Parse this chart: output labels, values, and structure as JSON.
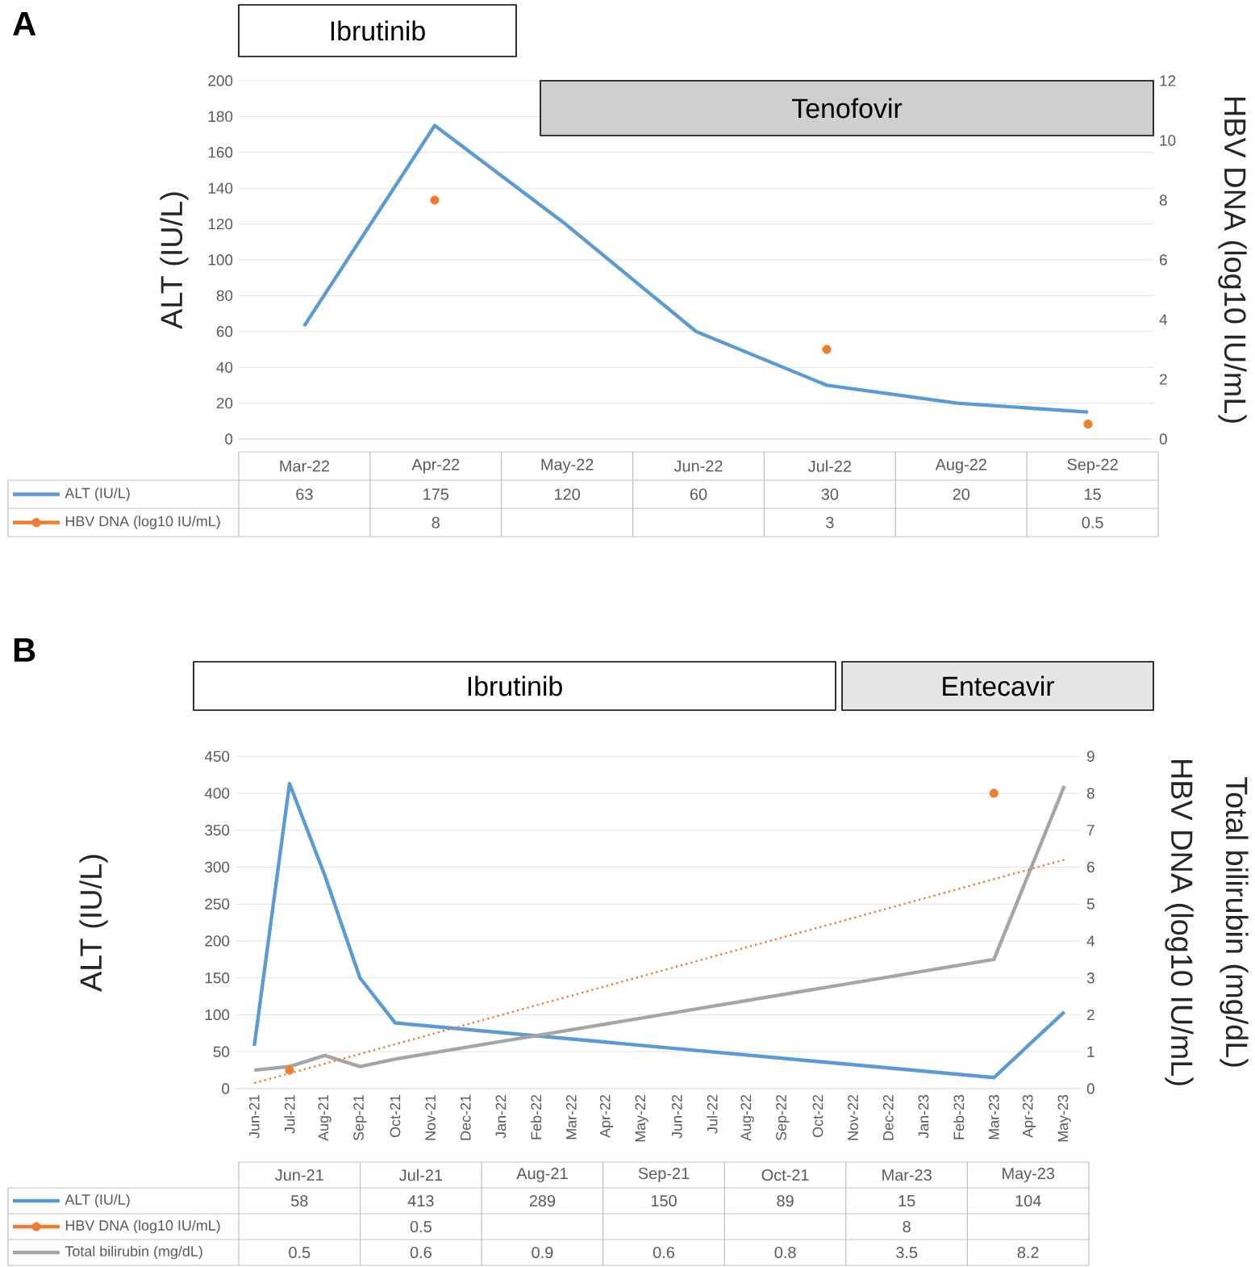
{
  "chart_data": [
    {
      "type": "line",
      "title": "A",
      "categories": [
        "Mar-22",
        "Apr-22",
        "May-22",
        "Jun-22",
        "Jul-22",
        "Aug-22",
        "Sep-22"
      ],
      "ylabel": "ALT (IU/L)",
      "y2label": "HBV DNA (log10 IU/mL)",
      "ylim": [
        0,
        200
      ],
      "yticks": [
        0,
        20,
        40,
        60,
        80,
        100,
        120,
        140,
        160,
        180,
        200
      ],
      "y2lim": [
        0,
        12
      ],
      "y2ticks": [
        0,
        2,
        4,
        6,
        8,
        10,
        12
      ],
      "grid": "y",
      "legend": "bottom",
      "data_labels": true,
      "annotations": [
        "Ibrutinib",
        "Tenofovir"
      ],
      "series": [
        {
          "name": "ALT (IU/L)",
          "color": "#5b9bd5",
          "marker": "none",
          "line_style": "solid",
          "values": [
            63,
            175,
            120,
            60,
            30,
            20,
            15
          ]
        },
        {
          "name": "HBV DNA (log10 IU/mL)",
          "type": "scatter",
          "axis": "y2",
          "color": "#ed7d31",
          "marker": "circle",
          "values": [
            null,
            8,
            null,
            null,
            3,
            null,
            0.5
          ]
        }
      ]
    },
    {
      "type": "line",
      "title": "B",
      "x": [
        "2021-06",
        "2021-07",
        "2021-08",
        "2021-09",
        "2021-10",
        "2023-03",
        "2023-05"
      ],
      "xlim": [
        "2021-05-15",
        "2023-05-15"
      ],
      "xticks": [
        {
          "value": "2021-06",
          "label": "Jun-21"
        },
        {
          "value": "2021-07",
          "label": "Jul-21"
        },
        {
          "value": "2021-08",
          "label": "Aug-21"
        },
        {
          "value": "2021-09",
          "label": "Sep-21"
        },
        {
          "value": "2021-10",
          "label": "Oct-21"
        },
        {
          "value": "2021-11",
          "label": "Nov-21"
        },
        {
          "value": "2021-12",
          "label": "Dec-21"
        },
        {
          "value": "2022-01",
          "label": "Jan-22"
        },
        {
          "value": "2022-02",
          "label": "Feb-22"
        },
        {
          "value": "2022-03",
          "label": "Mar-22"
        },
        {
          "value": "2022-04",
          "label": "Apr-22"
        },
        {
          "value": "2022-05",
          "label": "May-22"
        },
        {
          "value": "2022-06",
          "label": "Jun-22"
        },
        {
          "value": "2022-07",
          "label": "Jul-22"
        },
        {
          "value": "2022-08",
          "label": "Aug-22"
        },
        {
          "value": "2022-09",
          "label": "Sep-22"
        },
        {
          "value": "2022-10",
          "label": "Oct-22"
        },
        {
          "value": "2022-11",
          "label": "Nov-22"
        },
        {
          "value": "2022-12",
          "label": "Dec-22"
        },
        {
          "value": "2023-01",
          "label": "Jan-23"
        },
        {
          "value": "2023-02",
          "label": "Feb-23"
        },
        {
          "value": "2023-03",
          "label": "Mar-23"
        },
        {
          "value": "2023-04",
          "label": "Apr-23"
        },
        {
          "value": "2023-05",
          "label": "May-23"
        }
      ],
      "ylabel": "ALT (IU/L)",
      "y2label": "Total bilirubin (mg/dL)",
      "ylim": [
        0,
        450
      ],
      "yticks": [
        0,
        50,
        100,
        150,
        200,
        250,
        300,
        350,
        400,
        450
      ],
      "y2lim": [
        0,
        9
      ],
      "y2ticks": [
        0,
        1,
        2,
        3,
        4,
        5,
        6,
        7,
        8,
        9
      ],
      "grid": "y",
      "annotations": [
        "Ibrutinib",
        "Entecavir",
        "HBV DNA (log10 IU/mL)"
      ],
      "series": [
        {
          "color": "#5b9bd5",
          "marker": "none",
          "line_style": "solid",
          "values": [
            58,
            413,
            289,
            150,
            89,
            15,
            104
          ]
        },
        {
          "type": "scatter",
          "axis": "y2",
          "color": "#ed7d31",
          "marker": "circle",
          "values": [
            null,
            0.5,
            null,
            null,
            null,
            8,
            null
          ]
        },
        {
          "axis": "y2",
          "color": "#a5a5a5",
          "marker": "none",
          "line_style": "solid",
          "values": [
            0.5,
            0.6,
            0.9,
            0.6,
            0.8,
            3.5,
            8.2
          ]
        },
        {
          "type": "line",
          "axis": "y2",
          "color": "#ed7d31",
          "marker": "none",
          "line_style": "dotted",
          "x": [
            "2021-06",
            "2023-05"
          ],
          "values": [
            0.15,
            6.2
          ]
        }
      ]
    },
    {
      "type": "other",
      "categories": [
        "Jun-21",
        "Jul-21",
        "Aug-21",
        "Sep-21",
        "Oct-21",
        "Mar-23",
        "May-23"
      ],
      "legend": "left",
      "data_labels": true,
      "series": [
        {
          "name": "ALT (IU/L)",
          "color": "#5b9bd5",
          "marker": "none",
          "values": [
            58,
            413,
            289,
            150,
            89,
            15,
            104
          ]
        },
        {
          "name": "HBV DNA (log10 IU/mL)",
          "color": "#ed7d31",
          "marker": "circle",
          "values": [
            null,
            0.5,
            null,
            null,
            null,
            8,
            null
          ]
        },
        {
          "name": "Total bilirubin (mg/dL)",
          "color": "#a5a5a5",
          "marker": "none",
          "values": [
            0.5,
            0.6,
            0.9,
            0.6,
            0.8,
            3.5,
            8.2
          ]
        }
      ]
    }
  ]
}
